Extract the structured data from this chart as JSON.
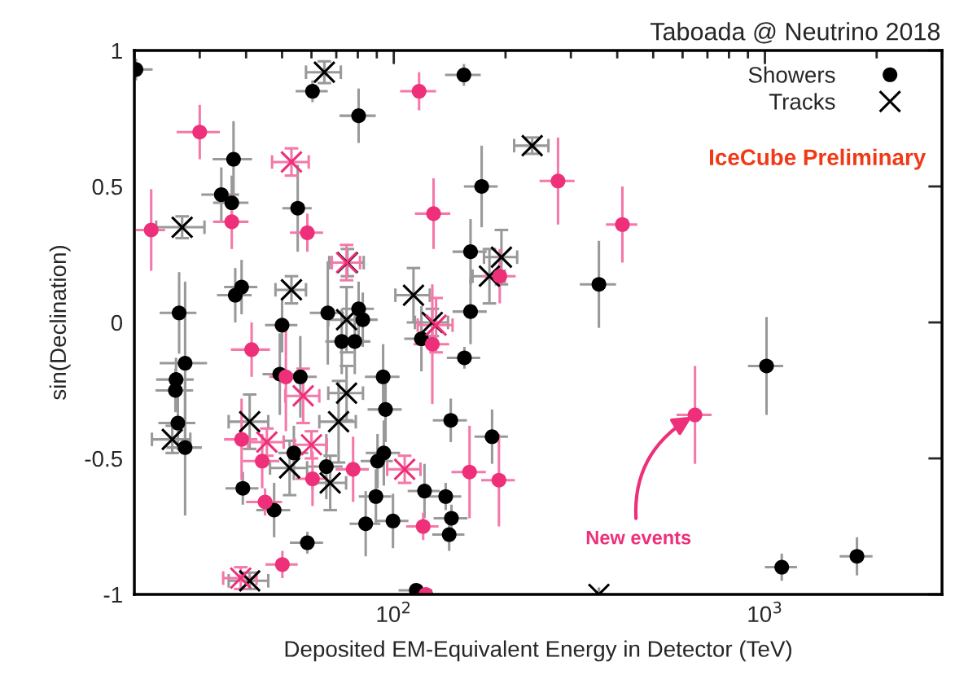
{
  "chart_data": {
    "type": "scatter",
    "xlabel": "Deposited EM-Equivalent Energy in Detector (TeV)",
    "ylabel": "sin(Declination)",
    "log": "x",
    "xlim": [
      20,
      3000
    ],
    "ylim": [
      -1,
      1
    ],
    "xticks": [
      {
        "value": 100,
        "label": "10$^{2}$"
      },
      {
        "value": 1000,
        "label": "10$^{3}$"
      }
    ],
    "yticks": [
      -1,
      -0.5,
      0,
      0.5,
      1
    ],
    "grid": false,
    "legend": "top right",
    "annotations": [
      "Taboada @ Neutrino 2018",
      "IceCube Preliminary",
      {
        "text": "New events",
        "x": 648,
        "y": -0.34
      }
    ],
    "series": [
      {
        "name": "Showers",
        "color": "#000000",
        "marker": "circle",
        "x": [
          20.2,
          60.4,
          80.4,
          37,
          34.3,
          36.6,
          55.1,
          38.9,
          37.4,
          26.4,
          66.4,
          80.4,
          82.5,
          50,
          27.4,
          25.9,
          25.8,
          26.2,
          27.4,
          72.4,
          78.5,
          49.3,
          56,
          93.6,
          95,
          53.8,
          65.8,
          90.4,
          94,
          39.2,
          47.6,
          58.5,
          89.5,
          84,
          154.5,
          172.5,
          161,
          161,
          357,
          118.7,
          155,
          142.4,
          184,
          121,
          138,
          143,
          141,
          99.5,
          115,
          1010,
          1110,
          1770
        ],
        "values": [
          0.93,
          0.85,
          0.76,
          0.6,
          0.47,
          0.44,
          0.42,
          0.13,
          0.1,
          0.035,
          0.035,
          0.05,
          0.01,
          -0.01,
          -0.15,
          -0.21,
          -0.25,
          -0.37,
          -0.46,
          -0.07,
          -0.07,
          -0.19,
          -0.2,
          -0.2,
          -0.32,
          -0.48,
          -0.53,
          -0.51,
          -0.48,
          -0.61,
          -0.69,
          -0.81,
          -0.64,
          -0.74,
          0.91,
          0.5,
          0.26,
          0.04,
          0.14,
          -0.06,
          -0.13,
          -0.36,
          -0.42,
          -0.62,
          -0.64,
          -0.72,
          -0.78,
          -0.73,
          -0.985,
          -0.16,
          -0.9,
          -0.86
        ],
        "xerrors": [
          [
            20,
            22.4
          ],
          6,
          9,
          4.5,
          4,
          4,
          5,
          4,
          4,
          3,
          7,
          8,
          8,
          5,
          4,
          3,
          3,
          3,
          3,
          7,
          8,
          5,
          6,
          10,
          10,
          5,
          7,
          9,
          10,
          4,
          5,
          6,
          9,
          8,
          17,
          18,
          17,
          17,
          40,
          12,
          16,
          15,
          19,
          12,
          14,
          15,
          14,
          10,
          12,
          110,
          110,
          180
        ],
        "errors": [
          0.04,
          0.04,
          0.1,
          0.14,
          0.1,
          0.1,
          0.16,
          0.1,
          0.1,
          0.15,
          0.19,
          0.1,
          0.1,
          0.1,
          0.3,
          0.08,
          0.08,
          0.1,
          0.25,
          0.12,
          0.12,
          0.15,
          0.15,
          0.12,
          0.12,
          0.1,
          0.12,
          0.1,
          0.12,
          0.06,
          0.1,
          0.04,
          0.1,
          0.12,
          0.04,
          0.15,
          0.12,
          0.12,
          0.16,
          0.12,
          0.04,
          0.08,
          0.1,
          0.1,
          0.05,
          0.05,
          0.06,
          0.1,
          null,
          0.18,
          0.05,
          0.07
        ]
      },
      {
        "name": "Tracks",
        "color": "#000000",
        "marker": "cross",
        "x": [
          65,
          26.9,
          53,
          75,
          236,
          113,
          195,
          181,
          127,
          74.6,
          71,
          40.9,
          25.3,
          52.4,
          67.4,
          40.9,
          74.6,
          357
        ],
        "values": [
          0.92,
          0.35,
          0.12,
          0.22,
          0.65,
          0.1,
          0.24,
          0.17,
          0.0,
          -0.26,
          -0.365,
          -0.365,
          -0.43,
          -0.535,
          -0.59,
          -0.95,
          0.01,
          -1.0
        ],
        "xerrors": [
          7,
          4,
          5,
          8,
          25,
          12,
          20,
          18,
          13,
          8,
          8,
          5,
          3,
          6,
          7,
          5,
          8,
          null
        ],
        "errors": [
          0.04,
          0.04,
          0.05,
          0.05,
          0.03,
          0.1,
          0.1,
          0.1,
          0.05,
          0.1,
          0.15,
          0.1,
          0.05,
          0.1,
          0.1,
          0.03,
          0.12,
          null
        ]
      },
      {
        "color": "#ee2f7a",
        "marker": "circle",
        "x": [
          30,
          22.2,
          36.6,
          58.5,
          117,
          277,
          413,
          128,
          193,
          127,
          160,
          192,
          120,
          122,
          41.4,
          51.2,
          38.9,
          44.2,
          45,
          50.1,
          60.4,
          77.7,
          648
        ],
        "values": [
          0.7,
          0.34,
          0.37,
          0.33,
          0.85,
          0.52,
          0.36,
          0.4,
          0.17,
          -0.08,
          -0.55,
          -0.58,
          -0.75,
          -1.0,
          -0.1,
          -0.2,
          -0.43,
          -0.51,
          -0.66,
          -0.89,
          -0.575,
          -0.54,
          -0.34
        ],
        "xerrors": [
          4,
          2,
          4,
          6,
          13,
          30,
          40,
          14,
          20,
          14,
          17,
          20,
          12,
          null,
          5,
          5,
          4,
          5,
          5,
          5,
          6,
          8,
          70
        ],
        "errors": [
          0.1,
          0.15,
          0.1,
          0.07,
          0.07,
          0.16,
          0.14,
          0.13,
          0.1,
          0.22,
          0.17,
          0.17,
          0.05,
          null,
          0.1,
          0.2,
          0.15,
          0.1,
          0.05,
          0.05,
          0.1,
          0.12,
          0.18
        ]
      },
      {
        "color": "#ee2f7a",
        "marker": "cross",
        "x": [
          53,
          74.6,
          130,
          57,
          45.5,
          60,
          107,
          38.7
        ],
        "values": [
          0.59,
          0.22,
          -0.01,
          -0.27,
          -0.44,
          -0.45,
          -0.54,
          -0.94
        ],
        "xerrors": [
          6,
          6.5,
          14,
          6,
          5,
          6,
          11,
          4
        ],
        "errors": [
          0.05,
          0.065,
          0.1,
          0.1,
          0.05,
          0.05,
          0.05,
          0.04
        ]
      }
    ]
  }
}
